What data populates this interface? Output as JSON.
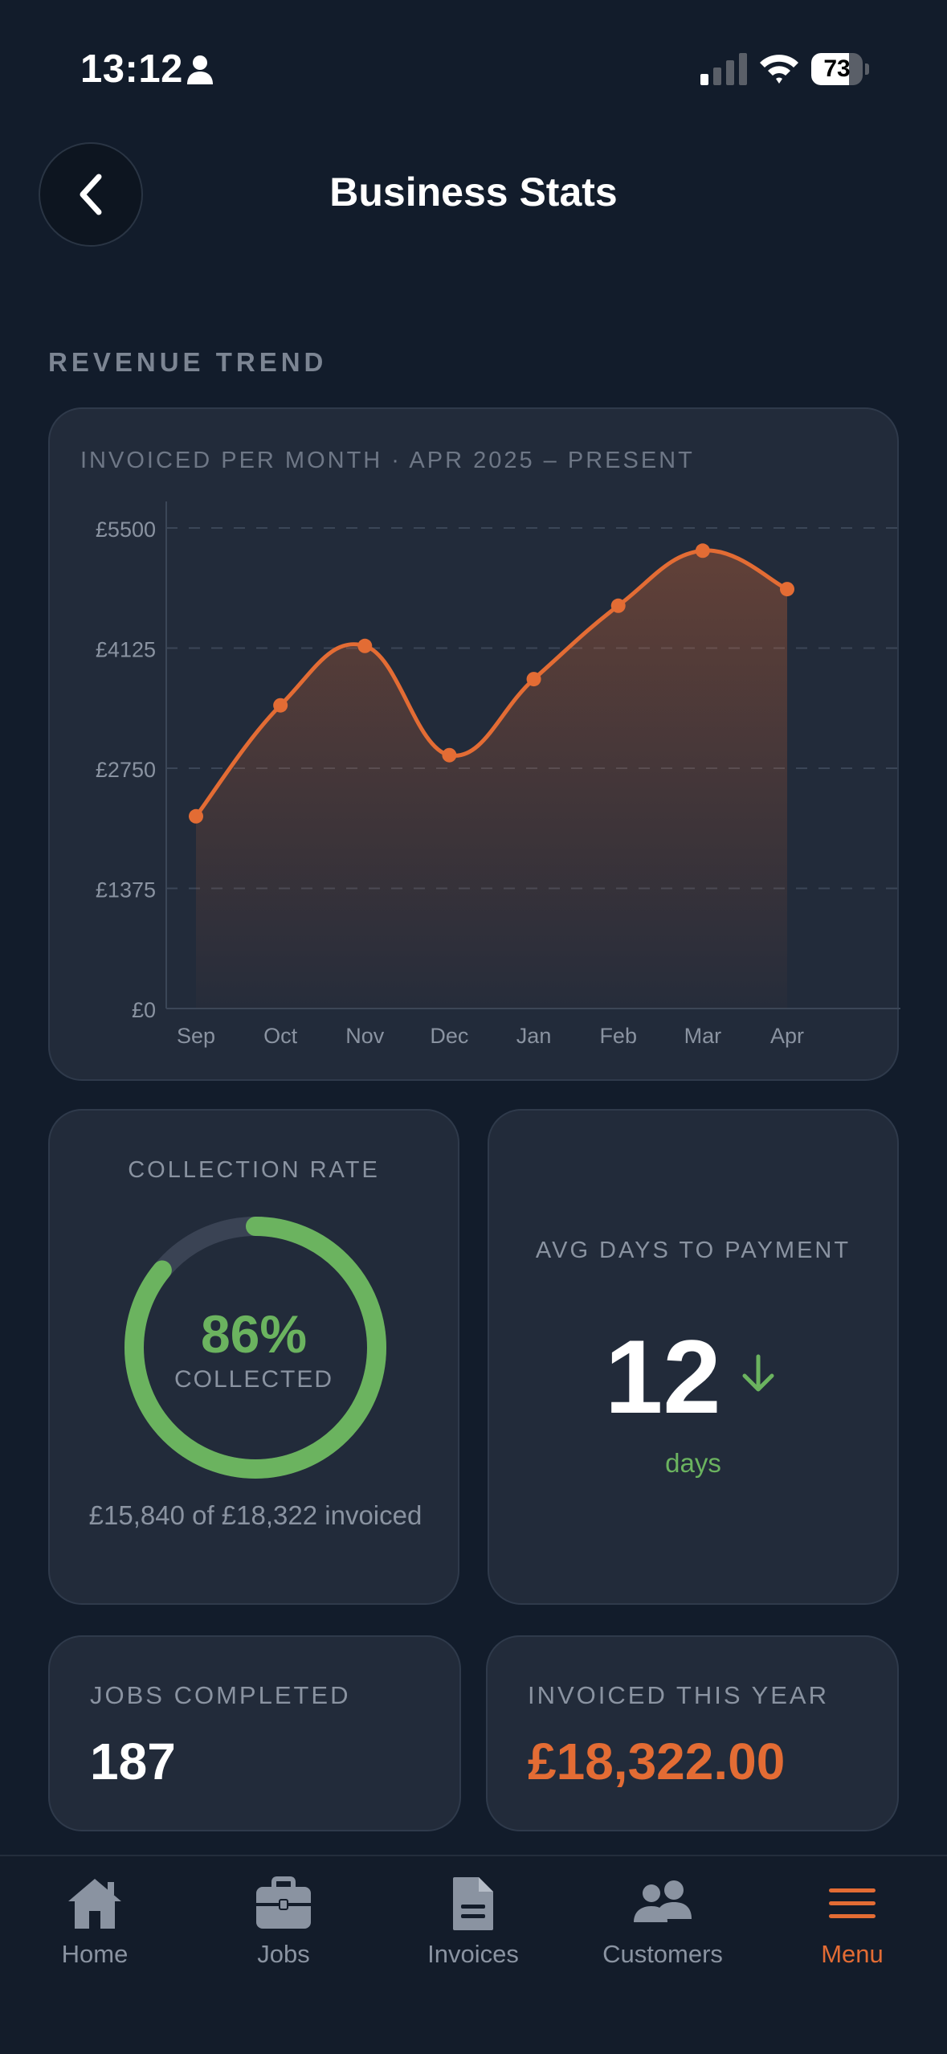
{
  "status_bar": {
    "time": "13:12",
    "battery": "73",
    "battery_level": 0.73
  },
  "header": {
    "title": "Business Stats",
    "back_icon": "chevron-left-icon"
  },
  "revenue_section": {
    "label": "REVENUE TREND",
    "subtitle": "INVOICED PER MONTH · APR 2025 – PRESENT"
  },
  "chart_data": {
    "type": "area",
    "title": "INVOICED PER MONTH · APR 2025 – PRESENT",
    "categories": [
      "Sep",
      "Oct",
      "Nov",
      "Dec",
      "Jan",
      "Feb",
      "Mar",
      "Apr"
    ],
    "values": [
      2200,
      3470,
      4150,
      2900,
      3770,
      4610,
      5240,
      4800
    ],
    "yticks": [
      "£0",
      "£1375",
      "£2750",
      "£4125",
      "£5500"
    ],
    "ylim": [
      0,
      5500
    ],
    "grid": true,
    "color": "#e36c34"
  },
  "collection": {
    "title": "COLLECTION RATE",
    "percent": "86%",
    "rate": 0.86,
    "label": "COLLECTED",
    "summary": "£15,840 of £18,322 invoiced",
    "color": "#6bb35f"
  },
  "avg_days": {
    "title": "AVG DAYS TO PAYMENT",
    "value": "12",
    "unit": "days",
    "trend_icon": "arrow-down-icon"
  },
  "jobs": {
    "label": "JOBS COMPLETED",
    "value": "187"
  },
  "invoiced": {
    "label": "INVOICED THIS YEAR",
    "value": "£18,322.00"
  },
  "tabs": [
    {
      "label": "Home",
      "icon": "home-icon",
      "active": false
    },
    {
      "label": "Jobs",
      "icon": "briefcase-icon",
      "active": false
    },
    {
      "label": "Invoices",
      "icon": "document-icon",
      "active": false
    },
    {
      "label": "Customers",
      "icon": "users-icon",
      "active": false
    },
    {
      "label": "Menu",
      "icon": "menu-icon",
      "active": true
    }
  ]
}
